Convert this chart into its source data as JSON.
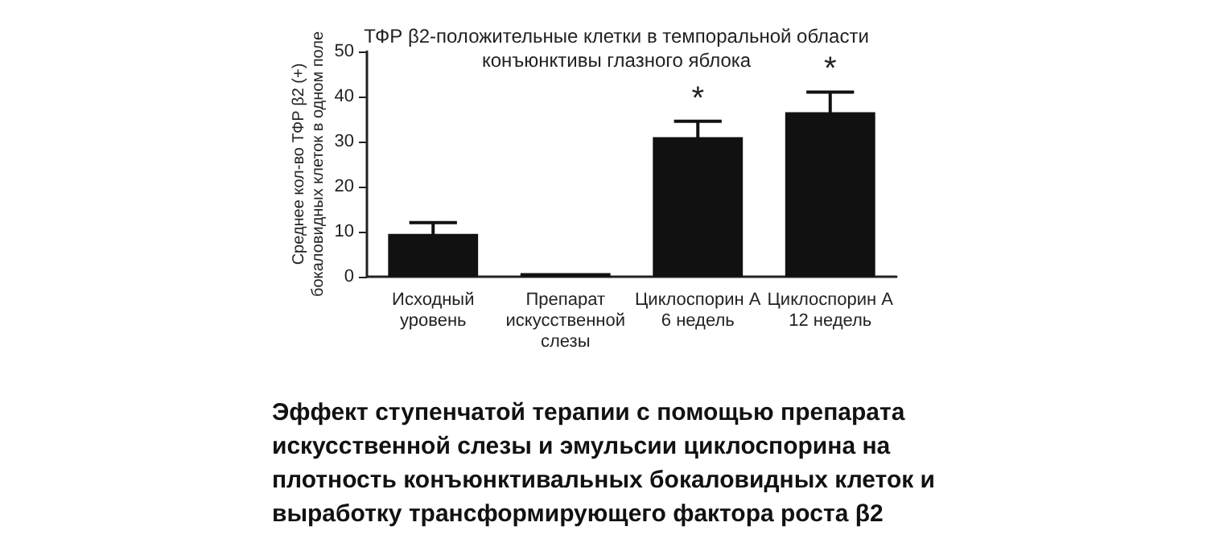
{
  "chart_data": {
    "type": "bar",
    "title": "ТФР β2-положительные клетки в темпоральной области конъюнктивы глазного яблока",
    "ylabel": "Среднее кол-во ТФР β2 (+) бокаловидных клеток в одном поле",
    "categories": [
      "Исходный уровень",
      "Препарат искусственной слезы",
      "Циклоспорин А 6 недель",
      "Циклоспорин А 12 недель"
    ],
    "values": [
      9.5,
      0.8,
      31,
      36.5
    ],
    "color": "#111111",
    "errors": [
      2.5,
      null,
      3.5,
      4.5
    ],
    "ylim": [
      0,
      50
    ],
    "yticks": [
      0,
      10,
      20,
      30,
      40,
      50
    ],
    "grid": false,
    "annotations": [
      {
        "text": "*",
        "x": "Циклоспорин А 6 недель",
        "y": 34.5
      },
      {
        "text": "*",
        "x": "Циклоспорин А 12 недель",
        "y": 41
      },
      "Эффект ступенчатой терапии с помощью препарата искусственной слезы и эмульсии циклоспорина на плотность конъюнктивальных бокаловидных клеток и выработку трансформирующего фактора роста β2"
    ]
  }
}
